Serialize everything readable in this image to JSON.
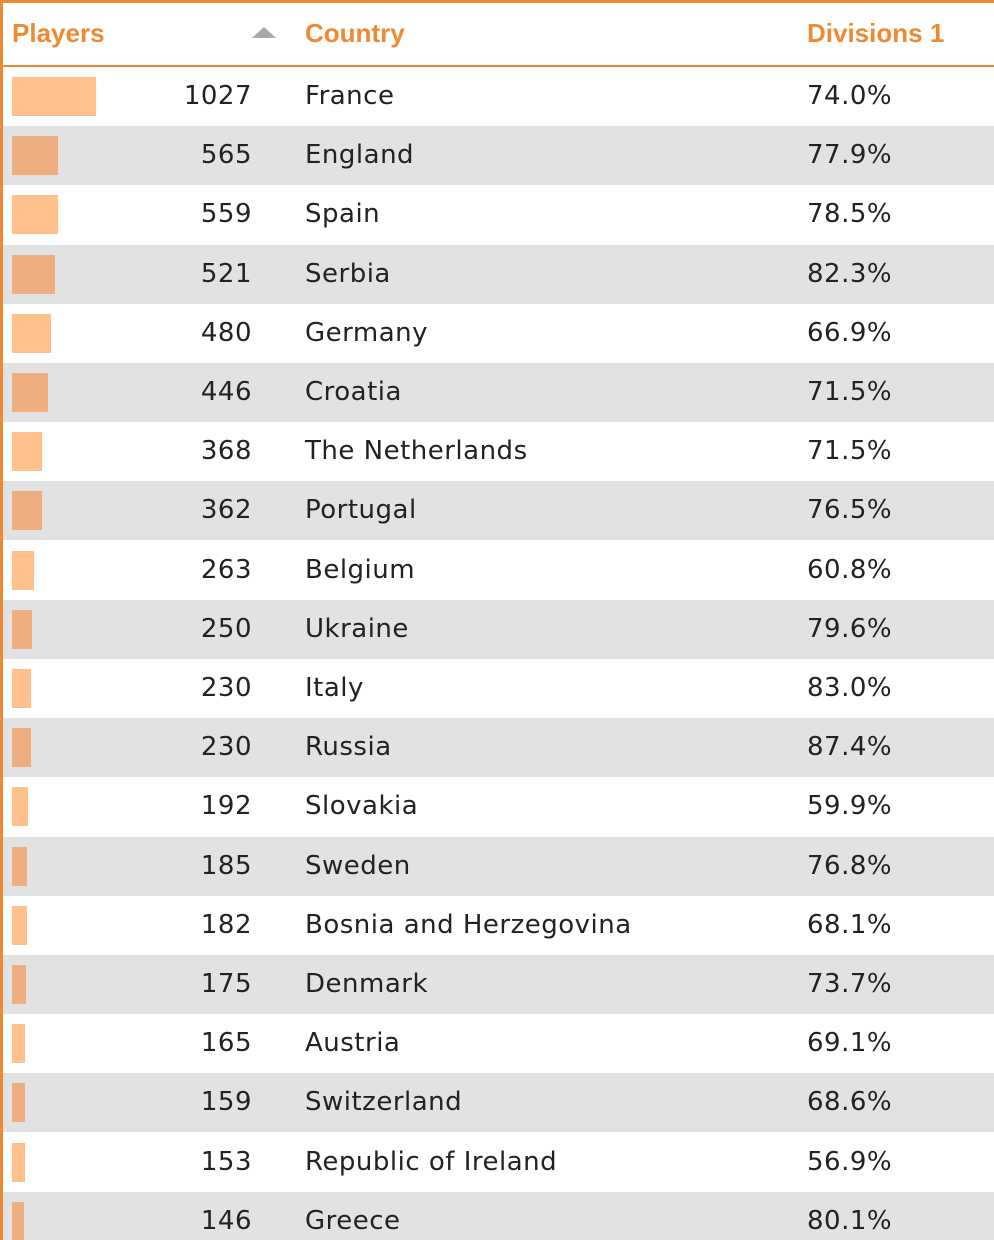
{
  "table": {
    "columns": {
      "players": "Players",
      "country": "Country",
      "divisions": "Divisions 1"
    },
    "sort": {
      "column": "players",
      "direction": "desc",
      "icon": "sort-arrow-icon"
    },
    "colors": {
      "accent": "#f08a32",
      "bar_light": "#ffc08c",
      "bar_dark": "#efae80",
      "row_alt": "#e2e2e2",
      "sort_icon": "#a9a9a9"
    },
    "bar_scale_max": 1027,
    "rows": [
      {
        "players": "1027",
        "country": "France",
        "divisions": "74.0%"
      },
      {
        "players": "565",
        "country": "England",
        "divisions": "77.9%"
      },
      {
        "players": "559",
        "country": "Spain",
        "divisions": "78.5%"
      },
      {
        "players": "521",
        "country": "Serbia",
        "divisions": "82.3%"
      },
      {
        "players": "480",
        "country": "Germany",
        "divisions": "66.9%"
      },
      {
        "players": "446",
        "country": "Croatia",
        "divisions": "71.5%"
      },
      {
        "players": "368",
        "country": "The Netherlands",
        "divisions": "71.5%"
      },
      {
        "players": "362",
        "country": "Portugal",
        "divisions": "76.5%"
      },
      {
        "players": "263",
        "country": "Belgium",
        "divisions": "60.8%"
      },
      {
        "players": "250",
        "country": "Ukraine",
        "divisions": "79.6%"
      },
      {
        "players": "230",
        "country": "Italy",
        "divisions": "83.0%"
      },
      {
        "players": "230",
        "country": "Russia",
        "divisions": "87.4%"
      },
      {
        "players": "192",
        "country": "Slovakia",
        "divisions": "59.9%"
      },
      {
        "players": "185",
        "country": "Sweden",
        "divisions": "76.8%"
      },
      {
        "players": "182",
        "country": "Bosnia and Herzegovina",
        "divisions": "68.1%"
      },
      {
        "players": "175",
        "country": "Denmark",
        "divisions": "73.7%"
      },
      {
        "players": "165",
        "country": "Austria",
        "divisions": "69.1%"
      },
      {
        "players": "159",
        "country": "Switzerland",
        "divisions": "68.6%"
      },
      {
        "players": "153",
        "country": "Republic of Ireland",
        "divisions": "56.9%"
      },
      {
        "players": "146",
        "country": "Greece",
        "divisions": "80.1%"
      }
    ]
  }
}
